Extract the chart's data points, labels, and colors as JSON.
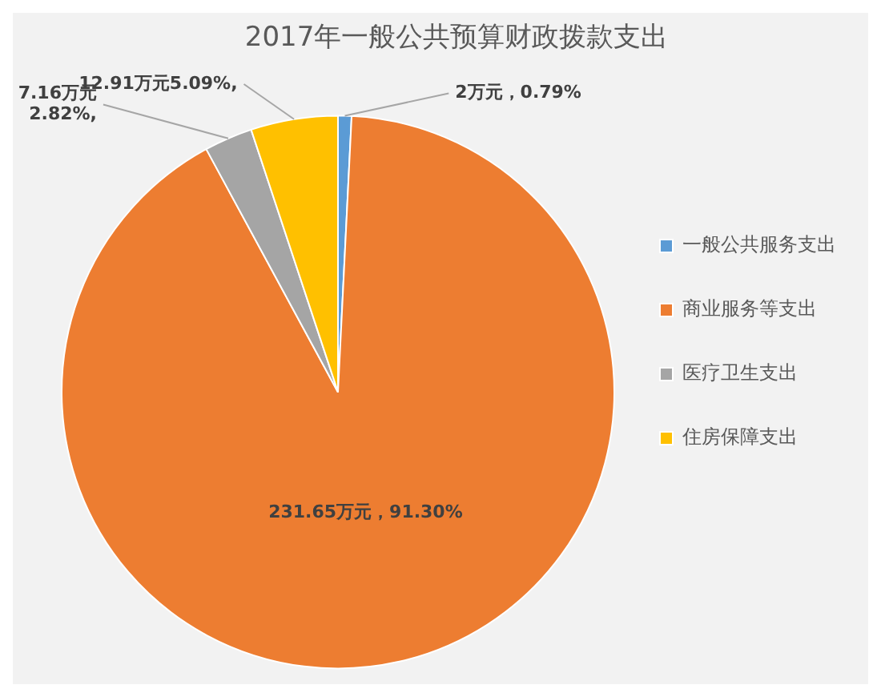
{
  "chart_data": {
    "type": "pie",
    "title": "2017年一般公共预算财政拨款支出",
    "categories": [
      "一般公共服务支出",
      "商业服务等支出",
      "医疗卫生支出",
      "住房保障支出"
    ],
    "values": [
      2,
      231.65,
      7.16,
      12.91
    ],
    "colors": [
      "#5b9bd5",
      "#ed7d31",
      "#a5a5a5",
      "#ffc000"
    ],
    "value_labels": [
      "2万元，0.79%",
      "231.65万元，91.30%",
      "7.16万元 2.82%,",
      "12.91万元5.09%,"
    ],
    "legend": "right"
  }
}
